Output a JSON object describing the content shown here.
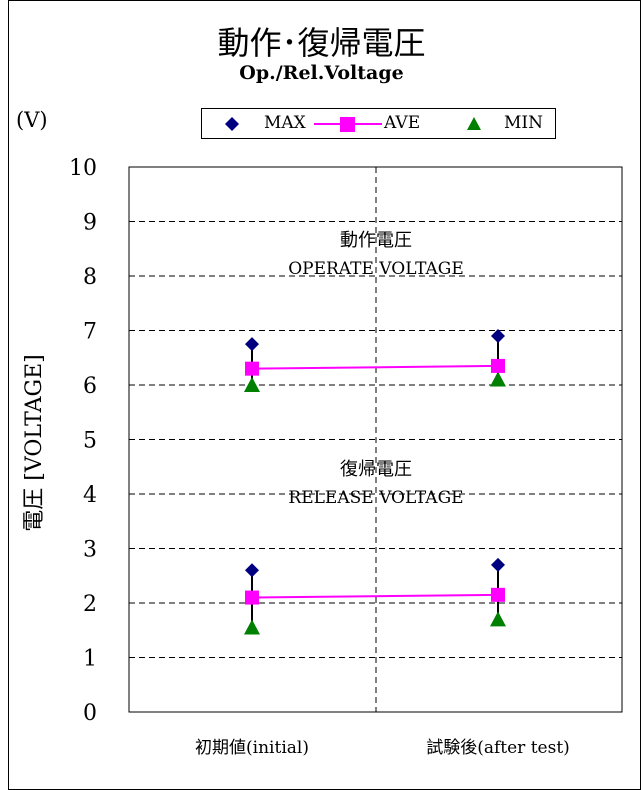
{
  "chart_data": {
    "type": "scatter",
    "title": "動作･復帰電圧",
    "subtitle": "Op./Rel.Voltage",
    "unit_label": "(V)",
    "ylabel": "電圧 [VOLTAGE]",
    "categories": [
      "初期値(initial)",
      "試験後(after test)"
    ],
    "ylim": [
      0,
      10
    ],
    "yticks": [
      "0",
      "1",
      "2",
      "3",
      "4",
      "5",
      "6",
      "7",
      "8",
      "9",
      "10"
    ],
    "grid": true,
    "legend_position": "top",
    "groups": [
      {
        "label_jp": "動作電圧",
        "label_en": "OPERATE VOLTAGE",
        "max": [
          6.75,
          6.9
        ],
        "ave": [
          6.3,
          6.35
        ],
        "min": [
          6.0,
          6.1
        ]
      },
      {
        "label_jp": "復帰電圧",
        "label_en": "RELEASE VOLTAGE",
        "max": [
          2.6,
          2.7
        ],
        "ave": [
          2.1,
          2.15
        ],
        "min": [
          1.55,
          1.7
        ]
      }
    ],
    "series": [
      {
        "name": "MAX",
        "color": "#000080",
        "marker": "diamond"
      },
      {
        "name": "AVE",
        "color": "#ff00ff",
        "marker": "square"
      },
      {
        "name": "MIN",
        "color": "#008000",
        "marker": "triangle"
      }
    ]
  }
}
